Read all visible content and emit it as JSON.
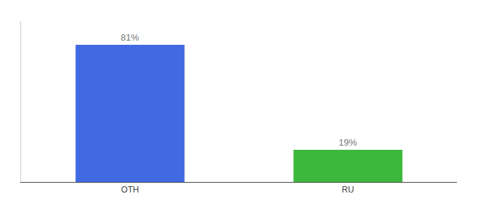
{
  "chart_data": {
    "type": "bar",
    "categories": [
      "OTH",
      "RU"
    ],
    "values": [
      81,
      19
    ],
    "value_labels": [
      "81%",
      "19%"
    ],
    "colors": [
      "#4169e1",
      "#3cb83c"
    ],
    "ylim": [
      0,
      95
    ],
    "data_labels": true,
    "tick_labels": "x",
    "grid": false
  }
}
